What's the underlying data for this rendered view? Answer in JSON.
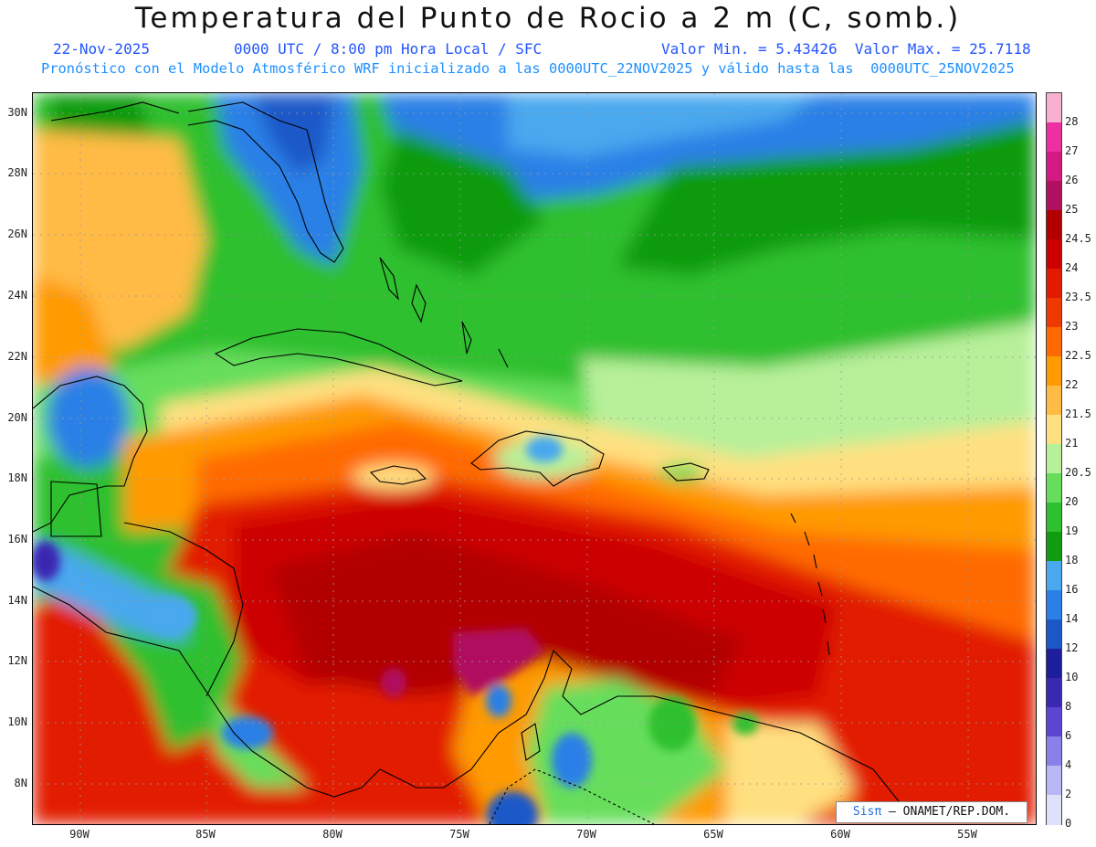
{
  "title": "Temperatura del Punto de Rocio a 2 m (C, somb.)",
  "date": "22-Nov-2025",
  "time_info": "0000 UTC / 8:00 pm Hora Local / SFC",
  "min_max": "Valor Min. = 5.43426  Valor Max. = 25.7118",
  "forecast_line": "Pronóstico con el Modelo Atmosférico WRF inicializado a las 0000UTC_22NOV2025 y válido hasta las  0000UTC_25NOV2025",
  "lat_labels": [
    "30N",
    "28N",
    "26N",
    "24N",
    "22N",
    "20N",
    "18N",
    "16N",
    "14N",
    "12N",
    "10N",
    "8N"
  ],
  "lon_labels": [
    "90W",
    "85W",
    "80W",
    "75W",
    "70W",
    "65W",
    "60W",
    "55W"
  ],
  "colorbar": {
    "labels": [
      "28",
      "27",
      "26",
      "25",
      "24.5",
      "24",
      "23.5",
      "23",
      "22.5",
      "22",
      "21.5",
      "21",
      "20.5",
      "20",
      "19",
      "18",
      "16",
      "14",
      "12",
      "10",
      "8",
      "6",
      "4",
      "2",
      "0"
    ],
    "colors": [
      "#f7b0d2",
      "#ee2fa0",
      "#d21a82",
      "#b01060",
      "#b20000",
      "#cc0000",
      "#e21a00",
      "#ee3a00",
      "#ff6a00",
      "#ff9a00",
      "#ffbb44",
      "#ffe080",
      "#b8f09a",
      "#66de5c",
      "#2ec02e",
      "#109b10",
      "#4aa8ee",
      "#2a80e6",
      "#1a58c8",
      "#1e1e9c",
      "#3a28b0",
      "#5a46d2",
      "#8a80ea",
      "#b8b8f4",
      "#e0e0fa"
    ]
  },
  "credit": {
    "logo": "Sisπ",
    "text": " – ONAMET/REP.DOM."
  },
  "colors": {
    "ocean": "#1a5fd0",
    "land_line": "#000000"
  }
}
